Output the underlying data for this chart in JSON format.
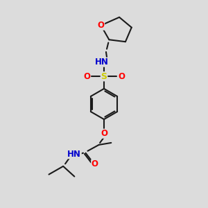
{
  "bg_color": "#dcdcdc",
  "bond_color": "#1a1a1a",
  "bond_width": 1.5,
  "atom_colors": {
    "O": "#ff0000",
    "N": "#0000cd",
    "S": "#cccc00",
    "H": "#778899",
    "C": "#1a1a1a"
  },
  "font_size": 8.5,
  "figsize": [
    3.0,
    3.0
  ],
  "dpi": 100,
  "xlim": [
    0,
    10
  ],
  "ylim": [
    0,
    10
  ]
}
